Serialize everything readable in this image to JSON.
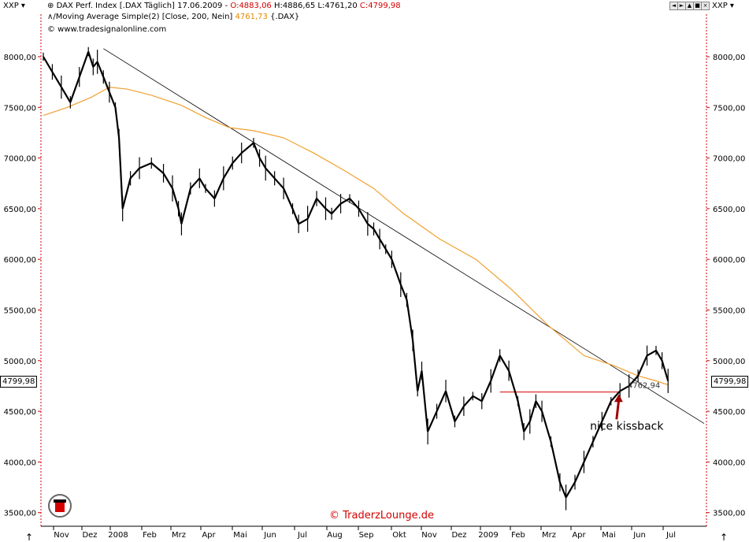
{
  "toolbar": {
    "left_symbol": "XXP",
    "right_symbol": "XXP",
    "buttons": [
      "◄",
      "►",
      "▲",
      "■",
      "×"
    ]
  },
  "header": {
    "instrument": "DAX Perf. Index [.DAX  Täglich] 17.06.2009 -",
    "open": "O:4883,06",
    "high_low": "H:4886,65 L:4761,20",
    "close": "C:4799,98",
    "ma_label": "Moving Average Simple(2) [Close, 200, Nein]",
    "ma_value": "4761,73",
    "ma_suffix": "{.DAX}",
    "source": "© www.tradesignalonline.com"
  },
  "price_tag": "4799,98",
  "watermark": "© TraderzLounge.de",
  "colors": {
    "price": "#000000",
    "moving_average": "#f0a030",
    "trendline": "#000000",
    "support_line": "#d40000",
    "arrow": "#a00000",
    "axis_red": "#d40000"
  },
  "chart_data": {
    "type": "line",
    "title": "DAX Perf. Index",
    "ylim": [
      3450,
      8250
    ],
    "y_ticks": [
      "8000,00",
      "7500,00",
      "7000,00",
      "6500,00",
      "6000,00",
      "5500,00",
      "5000,00",
      "4500,00",
      "4000,00",
      "3500,00"
    ],
    "x_ticks": [
      "Nov",
      "Dez",
      "2008",
      "Feb",
      "Mrz",
      "Apr",
      "Mai",
      "Jun",
      "Jul",
      "Aug",
      "Sep",
      "Okt",
      "Nov",
      "Dez",
      "2009",
      "Feb",
      "Mrz",
      "Apr",
      "Mai",
      "Jun",
      "Jul"
    ],
    "series": [
      {
        "name": "DAX",
        "values": [
          8000,
          7850,
          7700,
          7550,
          7800,
          8050,
          7900,
          7950,
          7800,
          7650,
          7500,
          7200,
          6500,
          6800,
          6900,
          6950,
          6850,
          6700,
          6500,
          6350,
          6700,
          6800,
          6700,
          6600,
          6800,
          6950,
          7050,
          7150,
          7000,
          6900,
          6800,
          6700,
          6500,
          6350,
          6400,
          6600,
          6500,
          6450,
          6550,
          6600,
          6500,
          6350,
          6300,
          6200,
          6100,
          6000,
          5750,
          5600,
          5200,
          4700,
          4900,
          4300,
          4500,
          4700,
          4400,
          4550,
          4650,
          4600,
          4800,
          5050,
          4900,
          4600,
          4300,
          4400,
          4600,
          4500,
          4200,
          3800,
          3650,
          3800,
          4000,
          4200,
          4400,
          4600,
          4700,
          4750,
          4850,
          5050,
          5100,
          5000,
          4800
        ],
        "x": [
          0,
          1.5,
          3,
          4.5,
          6,
          7.5,
          8.3,
          9,
          10,
          11,
          12,
          12.6,
          13.2,
          14.5,
          16,
          18,
          20,
          21.5,
          22.5,
          23,
          24.5,
          26,
          27,
          28.5,
          30,
          31.5,
          33,
          35,
          36,
          37,
          38.5,
          40,
          41.5,
          42.5,
          44,
          45.5,
          47,
          48,
          49.5,
          51,
          52.5,
          54,
          55,
          56,
          57,
          58,
          59.5,
          60.5,
          61.5,
          62.3,
          63,
          64,
          65.5,
          67,
          68.5,
          70,
          71.5,
          73,
          74.5,
          76,
          77.5,
          79,
          80,
          81,
          82,
          83,
          84.5,
          86,
          87,
          88.5,
          90,
          91.5,
          93,
          94.5,
          96,
          97.5,
          99,
          100.5,
          102,
          103,
          104
        ]
      },
      {
        "name": "Moving Average Simple(2) [Close, 200, Nein]",
        "values": [
          7420,
          7500,
          7600,
          7700,
          7680,
          7620,
          7520,
          7400,
          7300,
          7270,
          7200,
          7050,
          6880,
          6700,
          6450,
          6200,
          6000,
          5700,
          5350,
          5050,
          4950,
          4850,
          4800,
          4762
        ],
        "x": [
          0,
          4,
          8,
          11,
          14,
          18,
          23,
          27,
          31,
          35,
          40,
          45,
          50,
          55,
          60,
          66,
          72,
          78,
          84,
          90,
          95,
          99,
          102,
          104
        ]
      }
    ],
    "trendline": {
      "x": [
        10,
        110
      ],
      "y": [
        8080,
        4380
      ]
    },
    "support_level": {
      "x": [
        76,
        96
      ],
      "y": 4690
    },
    "annotations": [
      {
        "text": "4762,94",
        "x": 97,
        "y": 4762.94
      },
      {
        "text": "nice kissback",
        "x": 91,
        "y": 4350
      }
    ]
  }
}
